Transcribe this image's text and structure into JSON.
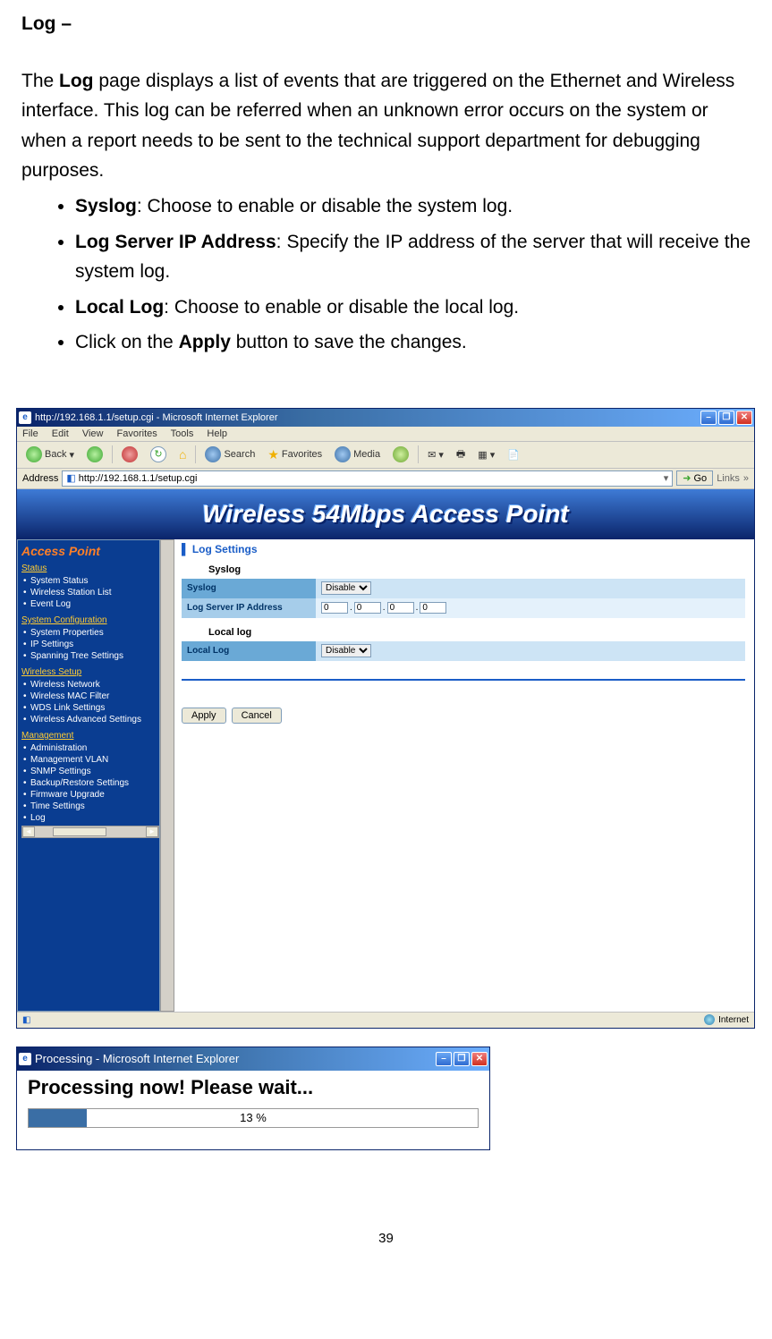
{
  "doc": {
    "heading": "Log –",
    "para_parts": {
      "p1a": "The ",
      "p1b": "Log",
      "p1c": " page displays a list of events that are triggered on the Ethernet and Wireless interface. This log can be referred when an unknown error occurs on the system or when a report needs to be sent to the technical support department for debugging purposes."
    },
    "bullets": [
      {
        "bold": "Syslog",
        "rest": ": Choose to enable or disable the system log."
      },
      {
        "bold": "Log Server IP Address",
        "rest": ": Specify the IP address of the server that will receive the system log."
      },
      {
        "bold": "Local Log",
        "rest": ": Choose to enable or disable the local log."
      },
      {
        "bold_mid": "Apply",
        "pre": "Click on the ",
        "post": " button to save the changes."
      }
    ]
  },
  "ie": {
    "title": "http://192.168.1.1/setup.cgi - Microsoft Internet Explorer",
    "menus": [
      "File",
      "Edit",
      "View",
      "Favorites",
      "Tools",
      "Help"
    ],
    "toolbar": {
      "back": "Back",
      "search": "Search",
      "favorites": "Favorites",
      "media": "Media"
    },
    "address_label": "Address",
    "address_value": "http://192.168.1.1/setup.cgi",
    "go": "Go",
    "links": "Links",
    "status_right": "Internet"
  },
  "router": {
    "banner": "Wireless 54Mbps Access Point",
    "sidebar": {
      "title": "Access Point",
      "sections": [
        {
          "heading": "Status",
          "items": [
            "System Status",
            "Wireless Station List",
            "Event Log"
          ]
        },
        {
          "heading": "System Configuration",
          "items": [
            "System Properties",
            "IP Settings",
            "Spanning Tree Settings"
          ]
        },
        {
          "heading": "Wireless Setup",
          "items": [
            "Wireless Network",
            "Wireless MAC Filter",
            "WDS Link Settings",
            "Wireless Advanced Settings"
          ]
        },
        {
          "heading": "Management",
          "items": [
            "Administration",
            "Management VLAN",
            "SNMP Settings",
            "Backup/Restore Settings",
            "Firmware Upgrade",
            "Time Settings",
            "Log"
          ]
        }
      ]
    },
    "main": {
      "section_title": "Log Settings",
      "syslog_heading": "Syslog",
      "syslog_label": "Syslog",
      "syslog_value": "Disable",
      "logserver_label": "Log Server IP Address",
      "ip": [
        "0",
        "0",
        "0",
        "0"
      ],
      "locallog_heading": "Local log",
      "locallog_label": "Local Log",
      "locallog_value": "Disable",
      "apply": "Apply",
      "cancel": "Cancel"
    }
  },
  "proc": {
    "title": "Processing - Microsoft Internet Explorer",
    "text": "Processing now! Please wait...",
    "pct_value": 13,
    "pct_label": "13 %"
  },
  "page_number": "39",
  "colors": {
    "ie_title_dark": "#0a246a",
    "ie_title_light": "#6caeff",
    "ece": "#ece9d8",
    "sidebar_bg": "#0a3d91",
    "sidebar_title": "#ff7f27",
    "sidebar_heading": "#ffcc33",
    "row_bg1": "#6aa9d6",
    "row_bg2": "#cde4f5",
    "progress_bar": "#3a6ea5"
  }
}
